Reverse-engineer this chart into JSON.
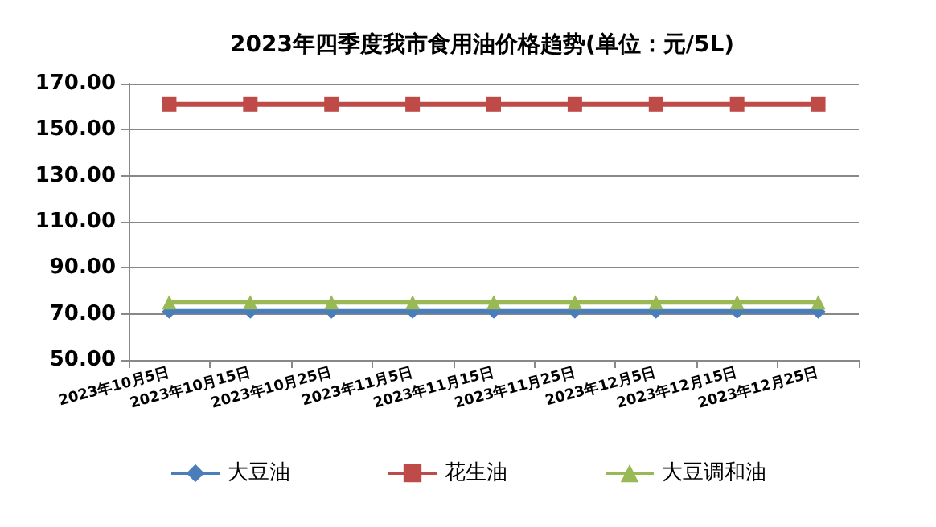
{
  "chart_data": {
    "type": "line",
    "title": "2023年四季度我市食用油价格趋势(单位：元/5L)",
    "categories": [
      "2023年10月5日",
      "2023年10月15日",
      "2023年10月25日",
      "2023年11月5日",
      "2023年11月15日",
      "2023年11月25日",
      "2023年12月5日",
      "2023年12月15日",
      "2023年12月25日"
    ],
    "series": [
      {
        "name": "大豆油",
        "color": "#4a7ebb",
        "marker": "diamond",
        "values": [
          71,
          71,
          71,
          71,
          71,
          71,
          71,
          71,
          71
        ]
      },
      {
        "name": "花生油",
        "color": "#be4b48",
        "marker": "square",
        "values": [
          161,
          161,
          161,
          161,
          161,
          161,
          161,
          161,
          161
        ]
      },
      {
        "name": "大豆调和油",
        "color": "#98b954",
        "marker": "triangle",
        "values": [
          75,
          75,
          75,
          75,
          75,
          75,
          75,
          75,
          75
        ]
      }
    ],
    "ylim": [
      50,
      170
    ],
    "yticks": [
      {
        "value": 50,
        "label": "50.00"
      },
      {
        "value": 70,
        "label": "70.00"
      },
      {
        "value": 90,
        "label": "90.00"
      },
      {
        "value": 110,
        "label": "110.00"
      },
      {
        "value": 130,
        "label": "130.00"
      },
      {
        "value": 150,
        "label": "150.00"
      },
      {
        "value": 170,
        "label": "170.00"
      }
    ],
    "grid": "y",
    "legend": "bottom"
  }
}
